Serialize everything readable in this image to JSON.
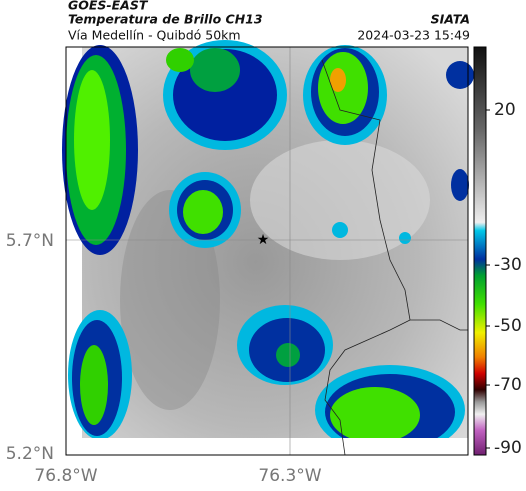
{
  "header": {
    "source": "GOES-EAST",
    "title": "Temperatura de Brillo CH13",
    "org": "SIATA",
    "subtitle": "Vía Medellín - Quibdó 50km",
    "datetime": "2024-03-23 15:49"
  },
  "axes": {
    "y_labels": [
      "5.7°N",
      "5.2°N"
    ],
    "x_labels": [
      "76.8°W",
      "76.3°W"
    ]
  },
  "colorbar": {
    "labels": [
      "20",
      "-30",
      "-50",
      "-70",
      "-90"
    ]
  }
}
